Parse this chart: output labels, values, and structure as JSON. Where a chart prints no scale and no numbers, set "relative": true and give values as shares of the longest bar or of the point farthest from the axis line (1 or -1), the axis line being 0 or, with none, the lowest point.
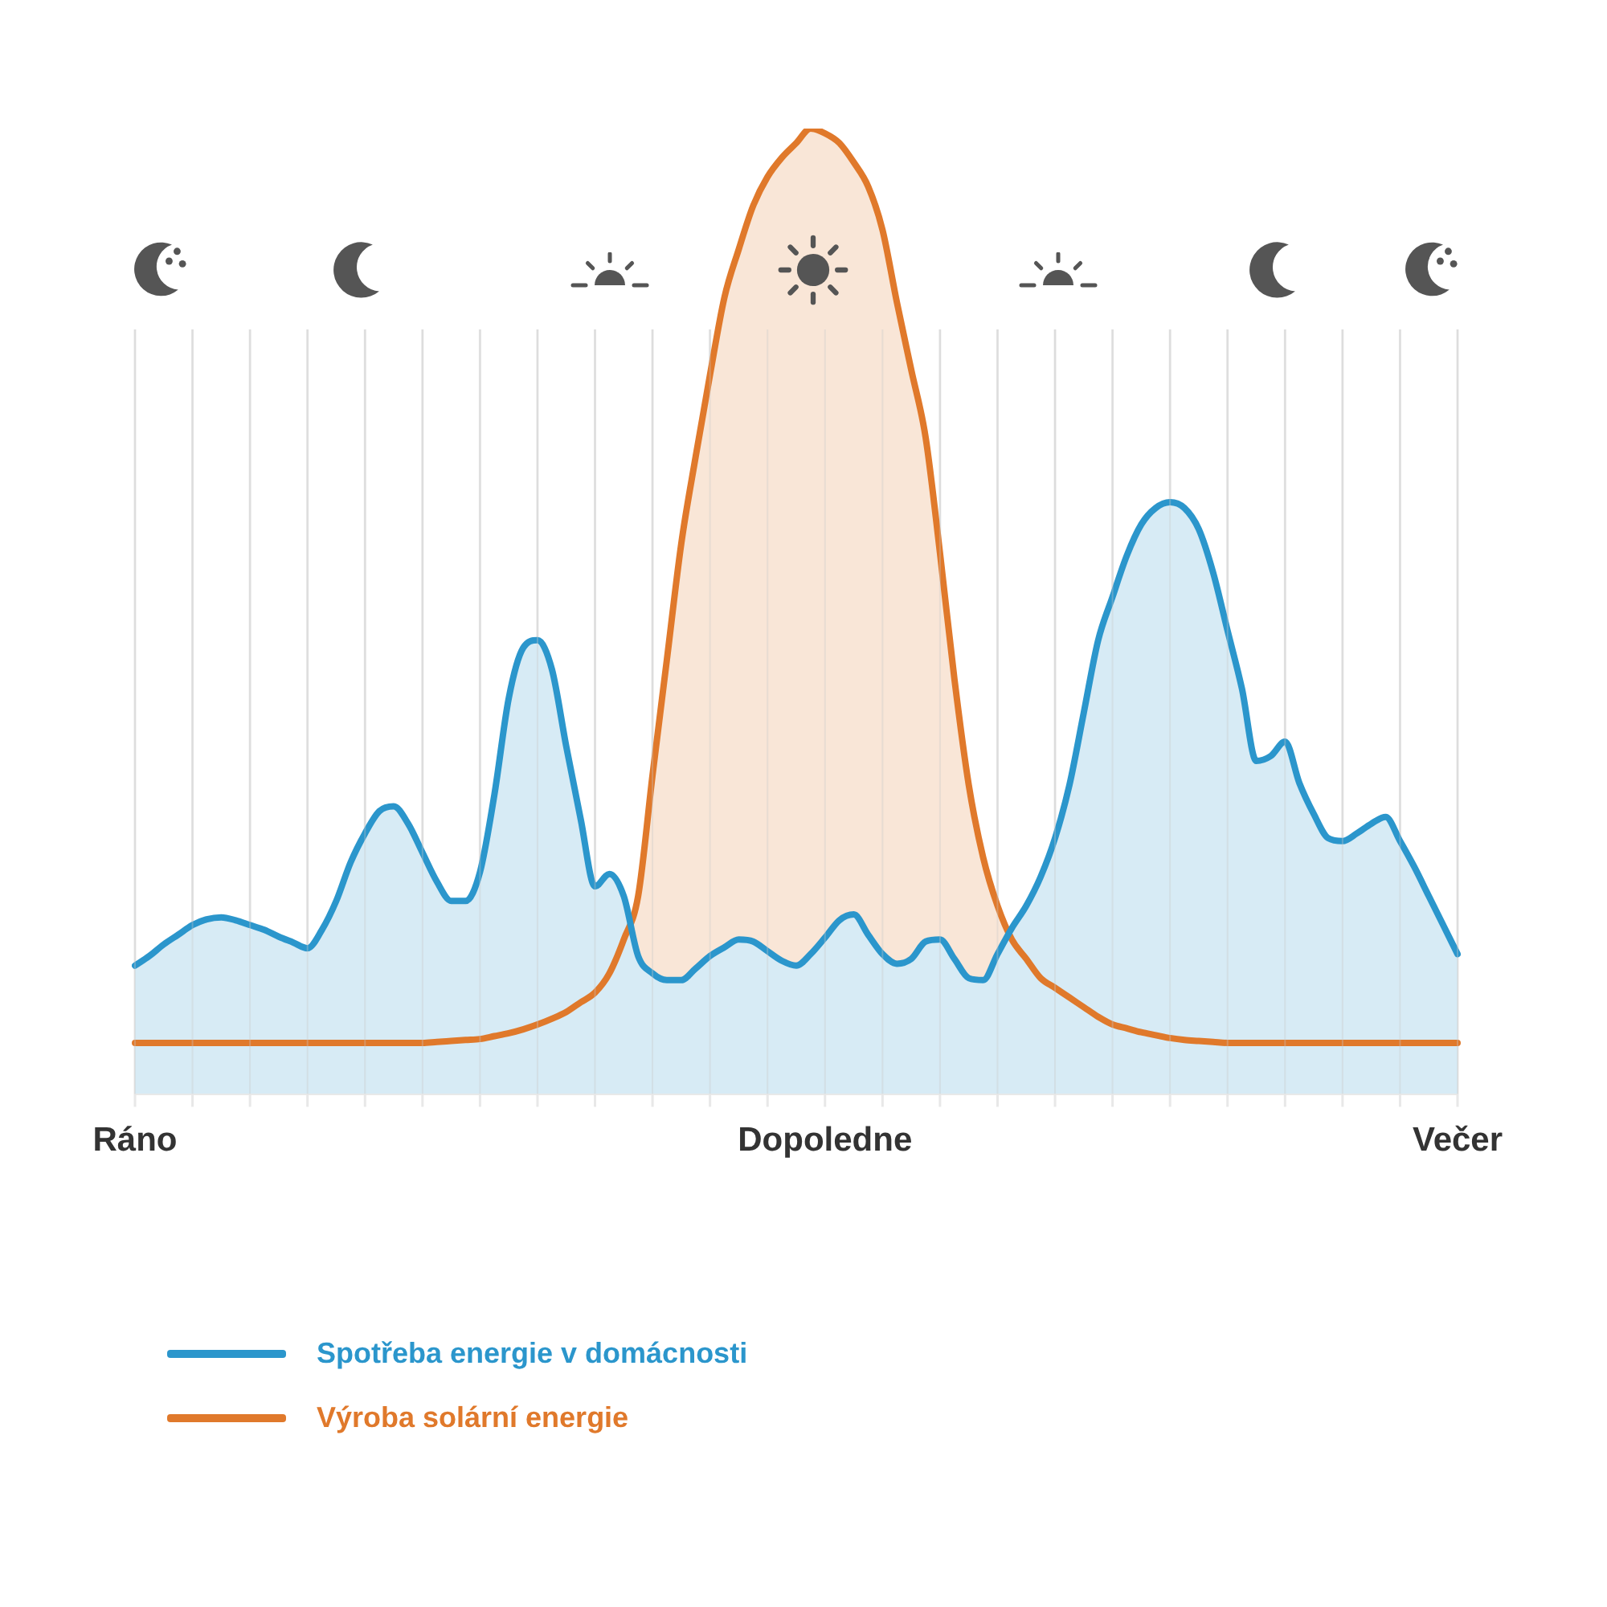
{
  "chart_data": {
    "type": "area",
    "relative": true,
    "categories": [
      "Ráno",
      null,
      null,
      null,
      null,
      null,
      null,
      null,
      null,
      null,
      null,
      null,
      null,
      null,
      null,
      null,
      null,
      null,
      null,
      null,
      null,
      null,
      null,
      null,
      null,
      null,
      null,
      null,
      null,
      null,
      null,
      null,
      null,
      null,
      null,
      null,
      null,
      null,
      null,
      null,
      null,
      null,
      null,
      null,
      null,
      null,
      null,
      null,
      "Dopoledne",
      null,
      null,
      null,
      null,
      null,
      null,
      null,
      null,
      null,
      null,
      null,
      null,
      null,
      null,
      null,
      null,
      null,
      null,
      null,
      null,
      null,
      null,
      null,
      null,
      null,
      null,
      null,
      null,
      null,
      null,
      null,
      null,
      null,
      null,
      null,
      null,
      null,
      null,
      null,
      null,
      null,
      null,
      null,
      "Večer"
    ],
    "grid": "x",
    "legend": "bottom left",
    "series": [
      {
        "name": "Spotřeba energie v domácnosti",
        "color": "#2b96cc",
        "values": [
          0.133,
          0.143,
          0.155,
          0.165,
          0.175,
          0.181,
          0.183,
          0.18,
          0.175,
          0.17,
          0.163,
          0.157,
          0.151,
          0.17,
          0.2,
          0.24,
          0.27,
          0.293,
          0.298,
          0.28,
          0.25,
          0.22,
          0.2,
          0.2,
          0.23,
          0.31,
          0.41,
          0.462,
          0.47,
          0.44,
          0.36,
          0.285,
          0.215,
          0.228,
          0.205,
          0.143,
          0.125,
          0.118,
          0.118,
          0.13,
          0.143,
          0.152,
          0.16,
          0.158,
          0.148,
          0.138,
          0.133,
          0.145,
          0.162,
          0.18,
          0.186,
          0.165,
          0.145,
          0.135,
          0.14,
          0.158,
          0.16,
          0.14,
          0.12,
          0.118,
          0.145,
          0.172,
          0.195,
          0.225,
          0.265,
          0.32,
          0.395,
          0.47,
          0.515,
          0.558,
          0.59,
          0.607,
          0.613,
          0.607,
          0.585,
          0.54,
          0.48,
          0.42,
          0.345,
          0.35,
          0.365,
          0.322,
          0.29,
          0.265,
          0.262,
          0.27,
          0.28,
          0.287,
          0.262,
          0.235,
          0.205,
          0.175,
          0.145
        ]
      },
      {
        "name": "Výroba solární energie",
        "color": "#e0792b",
        "values": [
          0.053,
          0.053,
          0.053,
          0.053,
          0.053,
          0.053,
          0.053,
          0.053,
          0.053,
          0.053,
          0.053,
          0.053,
          0.053,
          0.053,
          0.053,
          0.053,
          0.053,
          0.053,
          0.053,
          0.053,
          0.053,
          0.054,
          0.055,
          0.056,
          0.057,
          0.06,
          0.063,
          0.067,
          0.072,
          0.078,
          0.085,
          0.095,
          0.105,
          0.125,
          0.16,
          0.205,
          0.33,
          0.45,
          0.57,
          0.66,
          0.745,
          0.825,
          0.875,
          0.92,
          0.95,
          0.97,
          0.985,
          1,
          0.995,
          0.985,
          0.965,
          0.94,
          0.895,
          0.82,
          0.75,
          0.68,
          0.56,
          0.43,
          0.32,
          0.245,
          0.195,
          0.16,
          0.14,
          0.12,
          0.11,
          0.1,
          0.09,
          0.08,
          0.072,
          0.068,
          0.064,
          0.061,
          0.058,
          0.056,
          0.055,
          0.054,
          0.053,
          0.053,
          0.053,
          0.053,
          0.053,
          0.053,
          0.053,
          0.053,
          0.053,
          0.053,
          0.053,
          0.053,
          0.053,
          0.053,
          0.053,
          0.053,
          0.053
        ]
      }
    ]
  }
}
